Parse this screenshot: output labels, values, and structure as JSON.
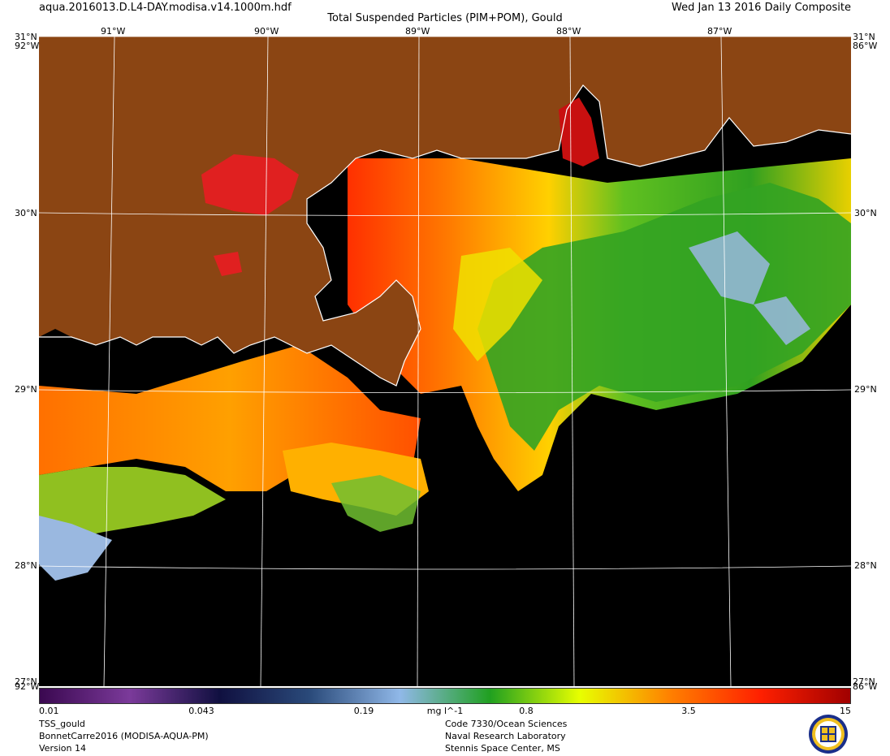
{
  "header": {
    "filename": "aqua.2016013.D.L4-DAY.modisa.v14.1000m.hdf",
    "title": "Total Suspended Particles (PIM+POM), Gould",
    "date": "Wed Jan 13 2016 Daily Composite"
  },
  "map": {
    "lat_labels": [
      "31°N",
      "30°N",
      "29°N",
      "28°N"
    ],
    "lon_labels": [
      "91°W",
      "90°W",
      "89°W",
      "88°W",
      "87°W"
    ],
    "corner_labels": {
      "top_left": "31°N",
      "top_left_lon": "92°W",
      "top_right": "31°N",
      "top_right_lon": "86°W",
      "bottom_left_lat": "27°N",
      "bottom_left_lon": "92°W",
      "bottom_right_lat": "27°N",
      "bottom_right_lon": "86°W"
    },
    "colors": {
      "land": "#8b4513",
      "no_data": "#000000",
      "coastline": "#ffffff",
      "grid": "#ffffff"
    }
  },
  "colorbar": {
    "scale": "log",
    "min": 0.01,
    "max": 15,
    "ticks": [
      "0.01",
      "0.043",
      "0.19",
      "0.8",
      "3.5",
      "15"
    ],
    "units": "mg l^-1",
    "stops": [
      "#3a0850",
      "#7b3a9a",
      "#101040",
      "#2a4a7a",
      "#90b8e8",
      "#20a020",
      "#e8ff00",
      "#ff8000",
      "#ff2000",
      "#a00000"
    ]
  },
  "footer": {
    "left": [
      "TSS_gould",
      "BonnetCarre2016 (MODISA-AQUA-PM)",
      "Version 14"
    ],
    "right": [
      "Code 7330/Ocean Sciences",
      "Naval Research Laboratory",
      "Stennis Space Center, MS"
    ]
  }
}
